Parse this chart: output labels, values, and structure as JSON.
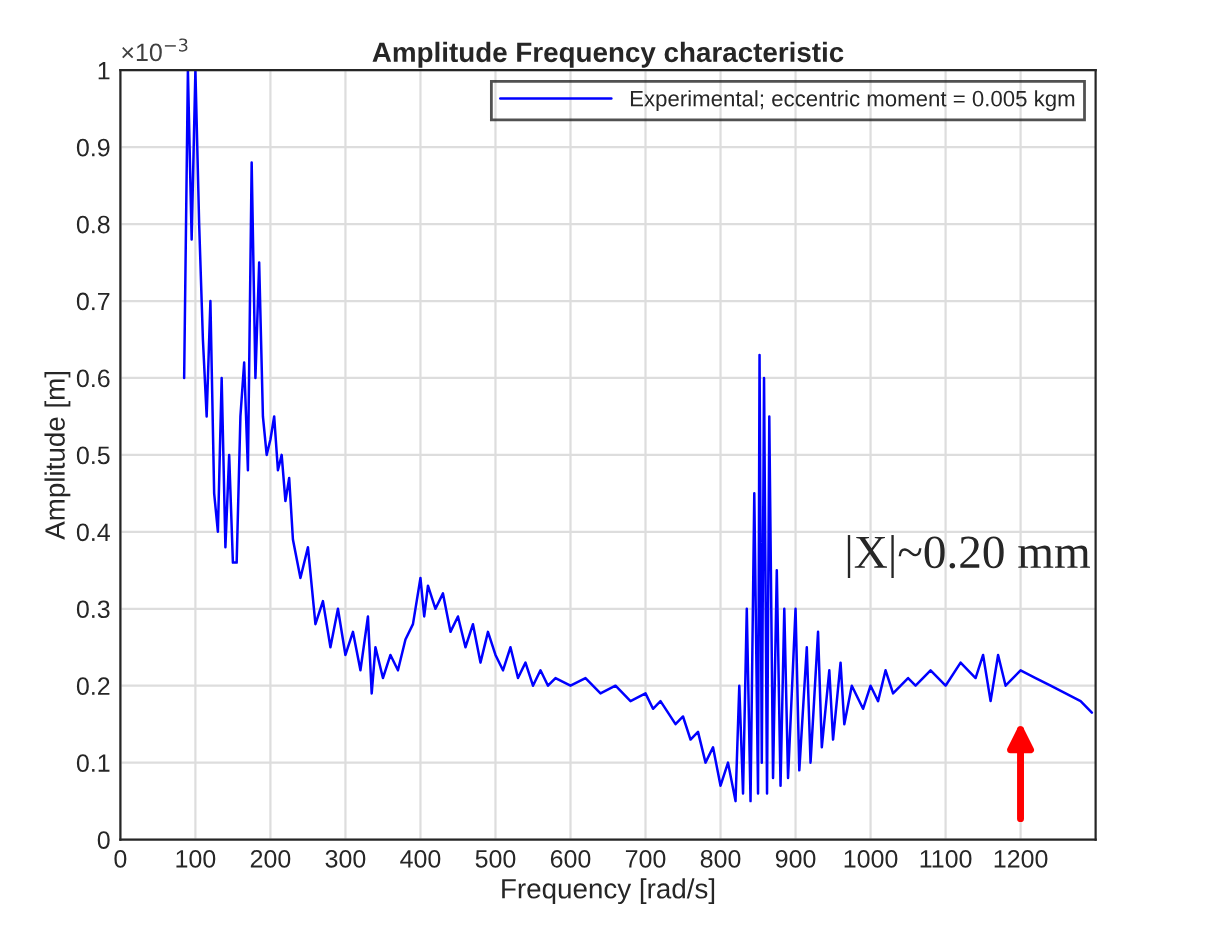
{
  "chart_data": {
    "type": "line",
    "title": "Amplitude Frequency characteristic",
    "xlabel": "Frequency [rad/s]",
    "ylabel": "Amplitude [m]",
    "annotations": [
      "×10$^{−3}$",
      "|X|~0.20 mm"
    ],
    "xlim": [
      0,
      1300
    ],
    "xticks": [
      0,
      100,
      200,
      300,
      400,
      500,
      600,
      700,
      800,
      900,
      1000,
      1100,
      1200
    ],
    "ylim": [
      0,
      1
    ],
    "yticks": [
      0,
      0.1,
      0.2,
      0.3,
      0.4,
      0.5,
      0.6,
      0.7,
      0.8,
      0.9,
      1
    ],
    "grid": true,
    "legend": "top right",
    "marker": "none",
    "line_style": "solid",
    "series": [
      {
        "name": "Experimental; eccentric moment = 0.005 kgm",
        "color": "#0000ff",
        "x": [
          85,
          90,
          95,
          100,
          105,
          110,
          115,
          120,
          125,
          130,
          135,
          140,
          145,
          150,
          155,
          160,
          165,
          170,
          175,
          180,
          185,
          190,
          195,
          200,
          205,
          210,
          215,
          220,
          225,
          230,
          240,
          250,
          260,
          270,
          280,
          290,
          300,
          310,
          320,
          330,
          335,
          340,
          350,
          360,
          370,
          380,
          390,
          400,
          405,
          410,
          420,
          430,
          440,
          450,
          460,
          470,
          480,
          490,
          500,
          510,
          520,
          530,
          540,
          550,
          560,
          570,
          580,
          600,
          620,
          640,
          660,
          680,
          700,
          710,
          720,
          740,
          750,
          760,
          770,
          780,
          790,
          800,
          810,
          820,
          825,
          830,
          835,
          840,
          845,
          850,
          852,
          855,
          858,
          862,
          865,
          870,
          875,
          880,
          885,
          890,
          900,
          905,
          915,
          920,
          930,
          935,
          945,
          950,
          960,
          965,
          975,
          990,
          1000,
          1010,
          1020,
          1030,
          1050,
          1060,
          1080,
          1100,
          1120,
          1140,
          1150,
          1160,
          1170,
          1180,
          1200,
          1220,
          1240,
          1260,
          1280,
          1295
        ],
        "values": [
          0.6,
          1.0,
          0.78,
          1.0,
          0.8,
          0.65,
          0.55,
          0.7,
          0.45,
          0.4,
          0.6,
          0.38,
          0.5,
          0.36,
          0.36,
          0.55,
          0.62,
          0.48,
          0.88,
          0.6,
          0.75,
          0.55,
          0.5,
          0.52,
          0.55,
          0.48,
          0.5,
          0.44,
          0.47,
          0.39,
          0.34,
          0.38,
          0.28,
          0.31,
          0.25,
          0.3,
          0.24,
          0.27,
          0.22,
          0.29,
          0.19,
          0.25,
          0.21,
          0.24,
          0.22,
          0.26,
          0.28,
          0.34,
          0.29,
          0.33,
          0.3,
          0.32,
          0.27,
          0.29,
          0.25,
          0.28,
          0.23,
          0.27,
          0.24,
          0.22,
          0.25,
          0.21,
          0.23,
          0.2,
          0.22,
          0.2,
          0.21,
          0.2,
          0.21,
          0.19,
          0.2,
          0.18,
          0.19,
          0.17,
          0.18,
          0.15,
          0.16,
          0.13,
          0.14,
          0.1,
          0.12,
          0.07,
          0.1,
          0.05,
          0.2,
          0.06,
          0.3,
          0.05,
          0.45,
          0.06,
          0.63,
          0.1,
          0.6,
          0.06,
          0.55,
          0.08,
          0.35,
          0.07,
          0.3,
          0.08,
          0.3,
          0.09,
          0.25,
          0.1,
          0.27,
          0.12,
          0.22,
          0.13,
          0.23,
          0.15,
          0.2,
          0.17,
          0.2,
          0.18,
          0.22,
          0.19,
          0.21,
          0.2,
          0.22,
          0.2,
          0.23,
          0.21,
          0.24,
          0.18,
          0.24,
          0.2,
          0.22,
          0.21,
          0.2,
          0.19,
          0.18,
          0.165
        ]
      }
    ]
  }
}
